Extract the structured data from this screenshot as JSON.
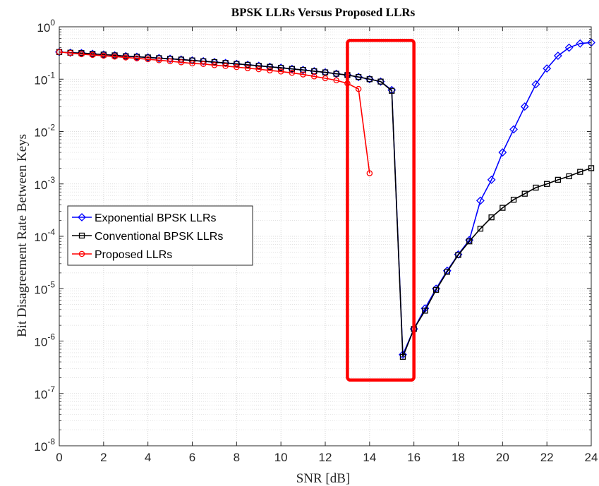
{
  "chart_data": {
    "type": "line",
    "title": "BPSK LLRs Versus Proposed LLRs",
    "xlabel": "SNR [dB]",
    "ylabel": "Bit Disagreement Rate Between Keys",
    "xlim": [
      0,
      24
    ],
    "ylim": [
      1e-08,
      1
    ],
    "yscale": "log",
    "grid": true,
    "minor_grid": true,
    "legend_position": "center-left",
    "x_ticks": [
      "0",
      "2",
      "4",
      "6",
      "8",
      "10",
      "12",
      "14",
      "16",
      "18",
      "20",
      "22",
      "24"
    ],
    "y_ticks": [
      {
        "base": "10",
        "exp": "0"
      },
      {
        "base": "10",
        "exp": "-1"
      },
      {
        "base": "10",
        "exp": "-2"
      },
      {
        "base": "10",
        "exp": "-3"
      },
      {
        "base": "10",
        "exp": "-4"
      },
      {
        "base": "10",
        "exp": "-5"
      },
      {
        "base": "10",
        "exp": "-6"
      },
      {
        "base": "10",
        "exp": "-7"
      },
      {
        "base": "10",
        "exp": "-8"
      }
    ],
    "series": [
      {
        "name": "Exponential BPSK LLRs",
        "color": "#0000ff",
        "marker": "diamond",
        "x": [
          0,
          0.5,
          1,
          1.5,
          2,
          2.5,
          3,
          3.5,
          4,
          4.5,
          5,
          5.5,
          6,
          6.5,
          7,
          7.5,
          8,
          8.5,
          9,
          9.5,
          10,
          10.5,
          11,
          11.5,
          12,
          12.5,
          13,
          13.5,
          14,
          14.5,
          15,
          15.5,
          16,
          16.5,
          17,
          17.5,
          18,
          18.5,
          19,
          19.5,
          20,
          20.5,
          21,
          21.5,
          22,
          22.5,
          23,
          23.5,
          24
        ],
        "y": [
          0.33,
          0.32,
          0.315,
          0.305,
          0.295,
          0.285,
          0.275,
          0.268,
          0.26,
          0.252,
          0.245,
          0.237,
          0.228,
          0.22,
          0.212,
          0.204,
          0.196,
          0.188,
          0.18,
          0.172,
          0.165,
          0.157,
          0.15,
          0.142,
          0.135,
          0.127,
          0.12,
          0.11,
          0.1,
          0.09,
          0.062,
          5.5e-07,
          1.7e-06,
          4.2e-06,
          1e-05,
          2.2e-05,
          4.5e-05,
          8.5e-05,
          0.00048,
          0.0012,
          0.004,
          0.011,
          0.03,
          0.08,
          0.16,
          0.28,
          0.4,
          0.48,
          0.5
        ]
      },
      {
        "name": "Conventional BPSK LLRs",
        "color": "#000000",
        "marker": "square",
        "x": [
          0,
          0.5,
          1,
          1.5,
          2,
          2.5,
          3,
          3.5,
          4,
          4.5,
          5,
          5.5,
          6,
          6.5,
          7,
          7.5,
          8,
          8.5,
          9,
          9.5,
          10,
          10.5,
          11,
          11.5,
          12,
          12.5,
          13,
          13.5,
          14,
          14.5,
          15,
          15.5,
          16,
          16.5,
          17,
          17.5,
          18,
          18.5,
          19,
          19.5,
          20,
          20.5,
          21,
          21.5,
          22,
          22.5,
          23,
          23.5,
          24
        ],
        "y": [
          0.33,
          0.32,
          0.315,
          0.305,
          0.295,
          0.285,
          0.275,
          0.268,
          0.26,
          0.252,
          0.245,
          0.237,
          0.228,
          0.22,
          0.212,
          0.204,
          0.196,
          0.188,
          0.18,
          0.172,
          0.165,
          0.157,
          0.15,
          0.142,
          0.135,
          0.127,
          0.12,
          0.11,
          0.1,
          0.09,
          0.06,
          5e-07,
          1.7e-06,
          3.8e-06,
          9.5e-06,
          2.1e-05,
          4.4e-05,
          8e-05,
          0.00014,
          0.00023,
          0.00035,
          0.0005,
          0.00065,
          0.00085,
          0.001,
          0.0012,
          0.0014,
          0.0017,
          0.002
        ]
      },
      {
        "name": "Proposed LLRs",
        "color": "#ff0000",
        "marker": "circle",
        "x": [
          0,
          0.5,
          1,
          1.5,
          2,
          2.5,
          3,
          3.5,
          4,
          4.5,
          5,
          5.5,
          6,
          6.5,
          7,
          7.5,
          8,
          8.5,
          9,
          9.5,
          10,
          10.5,
          11,
          11.5,
          12,
          12.5,
          13,
          13.5,
          14
        ],
        "y": [
          0.33,
          0.315,
          0.3,
          0.29,
          0.28,
          0.27,
          0.26,
          0.25,
          0.24,
          0.23,
          0.22,
          0.21,
          0.2,
          0.195,
          0.185,
          0.178,
          0.17,
          0.162,
          0.155,
          0.147,
          0.14,
          0.132,
          0.123,
          0.113,
          0.104,
          0.095,
          0.083,
          0.065,
          0.0016
        ]
      }
    ],
    "annotations": [
      {
        "type": "rectangle",
        "color": "#ff0000",
        "x_range": [
          13,
          16
        ],
        "y_range": [
          1.8e-07,
          0.55
        ]
      }
    ]
  }
}
